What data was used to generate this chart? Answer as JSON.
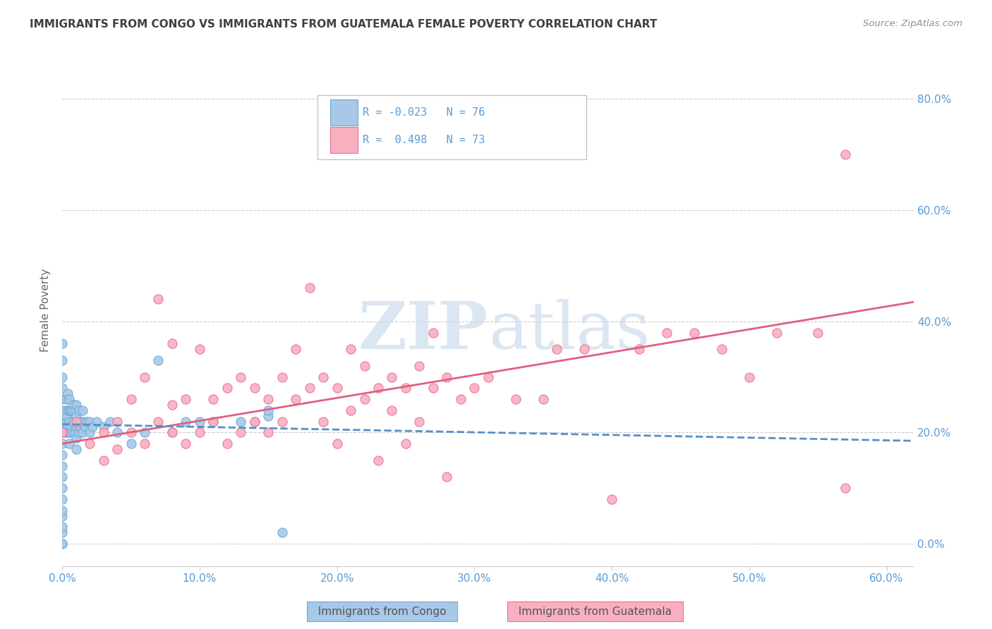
{
  "title": "IMMIGRANTS FROM CONGO VS IMMIGRANTS FROM GUATEMALA FEMALE POVERTY CORRELATION CHART",
  "source": "Source: ZipAtlas.com",
  "ylabel": "Female Poverty",
  "xlim": [
    0.0,
    0.62
  ],
  "ylim": [
    -0.04,
    0.88
  ],
  "xticks": [
    0.0,
    0.1,
    0.2,
    0.3,
    0.4,
    0.5,
    0.6
  ],
  "xtick_labels": [
    "0.0%",
    "10.0%",
    "20.0%",
    "30.0%",
    "40.0%",
    "50.0%",
    "60.0%"
  ],
  "ytick_positions": [
    0.0,
    0.2,
    0.4,
    0.6,
    0.8
  ],
  "right_ytick_labels": [
    "0.0%",
    "20.0%",
    "40.0%",
    "60.0%",
    "80.0%"
  ],
  "congo_color": "#a8c8e8",
  "congo_edge_color": "#6aaad4",
  "congo_line_color": "#5590c8",
  "guatemala_color": "#f8b0c0",
  "guatemala_edge_color": "#e87090",
  "guatemala_line_color": "#e06080",
  "tick_color": "#5b9bd5",
  "title_color": "#404040",
  "source_color": "#909090",
  "grid_color": "#cccccc",
  "background_color": "#ffffff",
  "watermark_color": "#ccdcee",
  "legend_label_congo": "Immigrants from Congo",
  "legend_label_guatemala": "Immigrants from Guatemala",
  "congo_R": -0.023,
  "congo_N": 76,
  "guatemala_R": 0.498,
  "guatemala_N": 73,
  "congo_trend": [
    0.215,
    0.185
  ],
  "guatemala_trend": [
    0.18,
    0.435
  ],
  "congo_x": [
    0.0,
    0.0,
    0.0,
    0.0,
    0.0,
    0.0,
    0.0,
    0.0,
    0.0,
    0.0,
    0.0,
    0.0,
    0.0,
    0.0,
    0.0,
    0.0,
    0.0,
    0.0,
    0.0,
    0.0,
    0.002,
    0.002,
    0.002,
    0.003,
    0.003,
    0.003,
    0.003,
    0.004,
    0.004,
    0.004,
    0.005,
    0.005,
    0.005,
    0.005,
    0.005,
    0.006,
    0.006,
    0.007,
    0.007,
    0.008,
    0.008,
    0.009,
    0.009,
    0.01,
    0.01,
    0.01,
    0.01,
    0.01,
    0.012,
    0.012,
    0.013,
    0.014,
    0.015,
    0.015,
    0.016,
    0.017,
    0.018,
    0.02,
    0.02,
    0.022,
    0.025,
    0.03,
    0.035,
    0.04,
    0.05,
    0.06,
    0.07,
    0.08,
    0.09,
    0.1,
    0.11,
    0.13,
    0.14,
    0.15,
    0.15,
    0.16
  ],
  "congo_y": [
    0.0,
    0.0,
    0.02,
    0.03,
    0.05,
    0.06,
    0.08,
    0.1,
    0.12,
    0.14,
    0.16,
    0.18,
    0.2,
    0.22,
    0.24,
    0.26,
    0.28,
    0.3,
    0.33,
    0.36,
    0.2,
    0.22,
    0.24,
    0.2,
    0.22,
    0.23,
    0.26,
    0.21,
    0.24,
    0.27,
    0.18,
    0.2,
    0.22,
    0.24,
    0.26,
    0.21,
    0.24,
    0.2,
    0.24,
    0.22,
    0.25,
    0.2,
    0.24,
    0.17,
    0.19,
    0.21,
    0.23,
    0.25,
    0.2,
    0.24,
    0.21,
    0.22,
    0.2,
    0.24,
    0.22,
    0.21,
    0.22,
    0.2,
    0.22,
    0.21,
    0.22,
    0.21,
    0.22,
    0.2,
    0.18,
    0.2,
    0.33,
    0.2,
    0.22,
    0.22,
    0.22,
    0.22,
    0.22,
    0.23,
    0.24,
    0.02
  ],
  "guat_x": [
    0.0,
    0.01,
    0.02,
    0.03,
    0.03,
    0.04,
    0.04,
    0.05,
    0.05,
    0.06,
    0.06,
    0.07,
    0.07,
    0.08,
    0.08,
    0.08,
    0.09,
    0.09,
    0.1,
    0.1,
    0.11,
    0.11,
    0.12,
    0.12,
    0.13,
    0.13,
    0.14,
    0.14,
    0.15,
    0.15,
    0.16,
    0.16,
    0.17,
    0.17,
    0.18,
    0.18,
    0.19,
    0.19,
    0.2,
    0.2,
    0.21,
    0.21,
    0.22,
    0.22,
    0.23,
    0.23,
    0.24,
    0.24,
    0.25,
    0.25,
    0.26,
    0.26,
    0.27,
    0.27,
    0.28,
    0.28,
    0.29,
    0.3,
    0.31,
    0.33,
    0.35,
    0.36,
    0.38,
    0.4,
    0.42,
    0.44,
    0.46,
    0.48,
    0.5,
    0.52,
    0.55,
    0.57,
    0.57
  ],
  "guat_y": [
    0.2,
    0.22,
    0.18,
    0.15,
    0.2,
    0.17,
    0.22,
    0.2,
    0.26,
    0.18,
    0.3,
    0.22,
    0.44,
    0.2,
    0.25,
    0.36,
    0.18,
    0.26,
    0.2,
    0.35,
    0.22,
    0.26,
    0.18,
    0.28,
    0.2,
    0.3,
    0.22,
    0.28,
    0.2,
    0.26,
    0.22,
    0.3,
    0.26,
    0.35,
    0.28,
    0.46,
    0.22,
    0.3,
    0.18,
    0.28,
    0.24,
    0.35,
    0.26,
    0.32,
    0.15,
    0.28,
    0.24,
    0.3,
    0.18,
    0.28,
    0.22,
    0.32,
    0.28,
    0.38,
    0.12,
    0.3,
    0.26,
    0.28,
    0.3,
    0.26,
    0.26,
    0.35,
    0.35,
    0.08,
    0.35,
    0.38,
    0.38,
    0.35,
    0.3,
    0.38,
    0.38,
    0.1,
    0.7
  ]
}
